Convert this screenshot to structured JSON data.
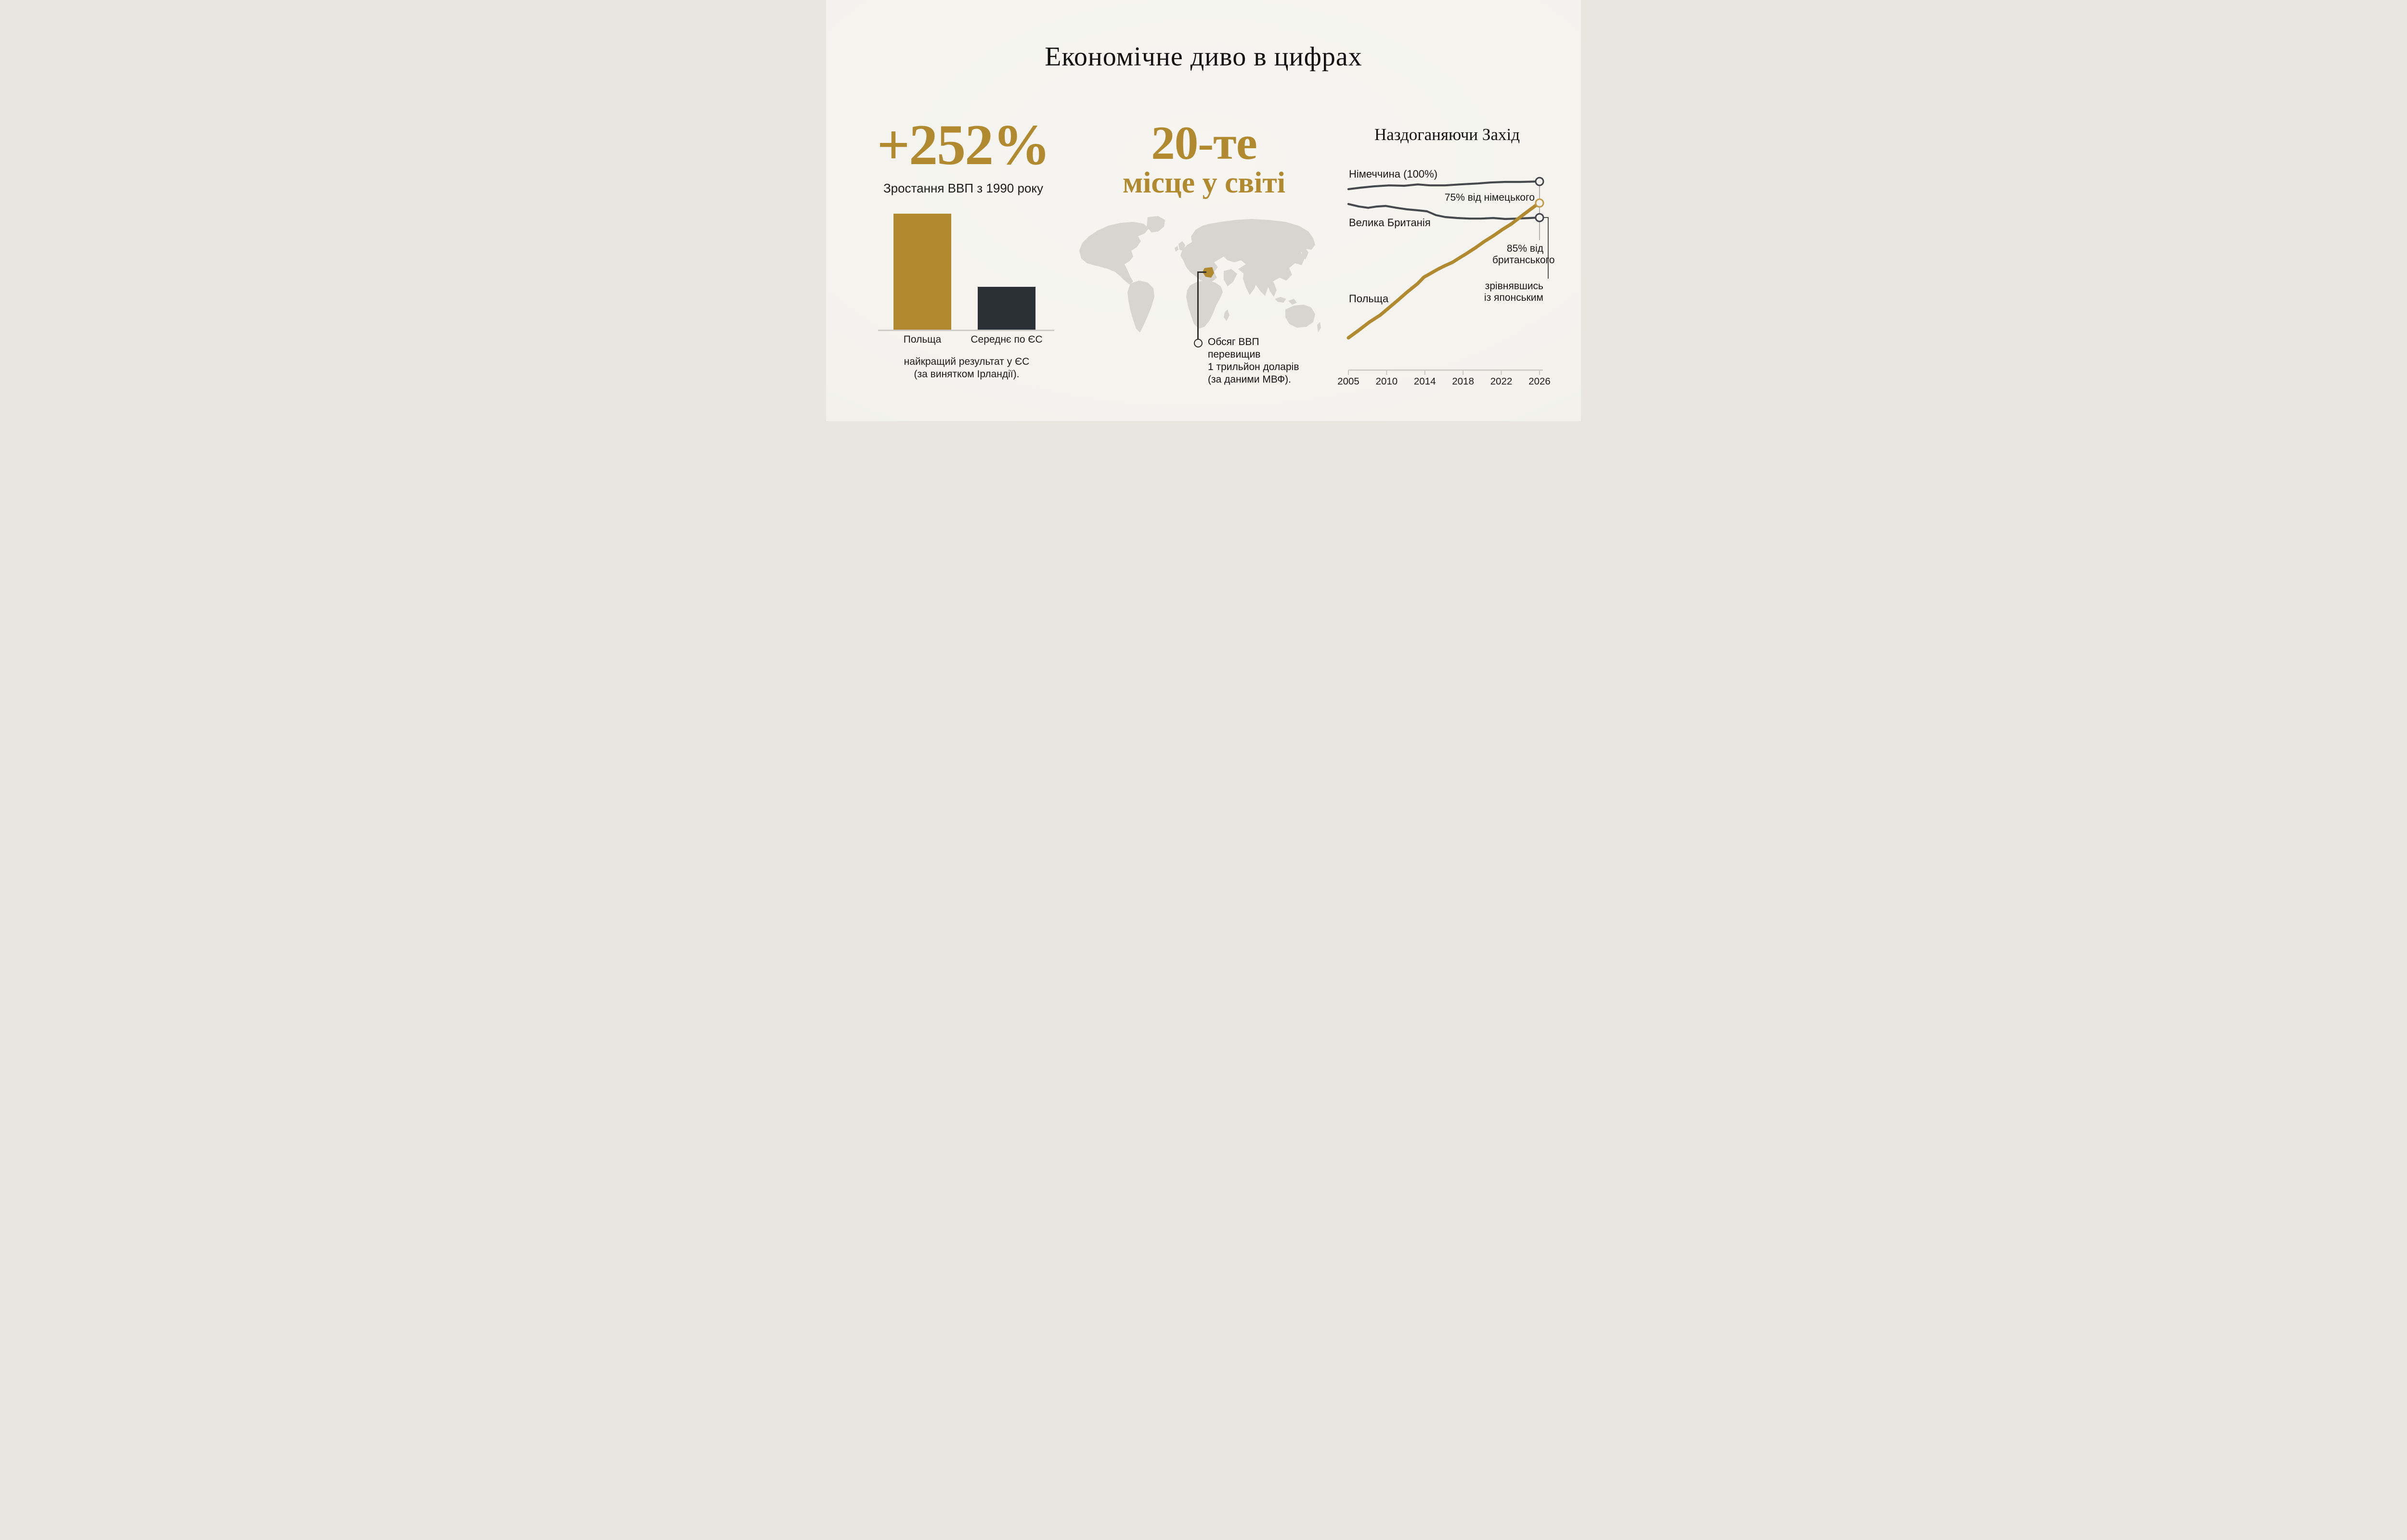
{
  "title": "Економічне диво в цифрах",
  "theme": {
    "background": "#f3f2ed",
    "accent_gold": "#b1892f",
    "gold_marker": "#c49a4a",
    "dark_bar": "#2b3036",
    "line_gray": "#45484c",
    "axis_gray": "#c9c8c2",
    "leader_dark": "#55544f",
    "connector_gray": "#9a9994",
    "map_land": "#d6d5d0",
    "text": "#161616"
  },
  "growth_panel": {
    "headline": "+252%",
    "subtitle": "Зростання ВВП з 1990 року",
    "footnote_line1": "найкращий результат у ЄС",
    "footnote_line2": "(за винятком Ірландії)."
  },
  "rank_panel": {
    "headline_line1": "20-те",
    "headline_line2": "місце у світі",
    "map_highlight": "Польща",
    "callout_lines": [
      "Обсяг ВВП",
      "перевищив",
      "1 трильйон доларів",
      "(за даними МВФ)."
    ]
  },
  "catchup_panel": {
    "heading": "Наздоганяючи Захід",
    "label_germany": "Німеччина (100%)",
    "label_uk": "Велика Британія",
    "label_poland": "Польща",
    "annotation_vs_germany": "75% від німецького",
    "annotation_vs_uk_line1": "85% від",
    "annotation_vs_uk_line2": "британського",
    "annotation_vs_japan_line1": "зрівнявшись",
    "annotation_vs_japan_line2": "із японським"
  },
  "chart_data": [
    {
      "type": "bar",
      "title": "Зростання ВВП з 1990 року",
      "categories": [
        "Польща",
        "Середнє по ЄС"
      ],
      "values": [
        252,
        93
      ],
      "unit": "%",
      "colors": [
        "#b1892f",
        "#2b3036"
      ],
      "annotation": "найкращий результат у ЄС (за винятком Ірландії)."
    },
    {
      "type": "map",
      "title": "20-те місце у світі",
      "highlight_country": "Польща",
      "annotation": "Обсяг ВВП перевищив 1 трильйон доларів (за даними МВФ)."
    },
    {
      "type": "line",
      "title": "Наздоганяючи Захід",
      "x_ticks": [
        "2005",
        "2010",
        "2014",
        "2018",
        "2022",
        "2026"
      ],
      "x_range": [
        2005,
        2026
      ],
      "grid": false,
      "legend": "inline-labels",
      "series": [
        {
          "name": "Німеччина (100%)",
          "color": "#45484c",
          "marker_color": "#3f4246",
          "approx_values_pct": [
            95.5,
            96.5,
            97,
            98,
            99,
            100
          ],
          "points_norm": [
            [
              0,
              0.058
            ],
            [
              0.063,
              0.05
            ],
            [
              0.134,
              0.043
            ],
            [
              0.214,
              0.038
            ],
            [
              0.292,
              0.04
            ],
            [
              0.363,
              0.033
            ],
            [
              0.426,
              0.038
            ],
            [
              0.506,
              0.038
            ],
            [
              0.584,
              0.033
            ],
            [
              0.678,
              0.028
            ],
            [
              0.743,
              0.023
            ],
            [
              0.821,
              0.02
            ],
            [
              0.902,
              0.02
            ],
            [
              0.98,
              0.018
            ],
            [
              0.987,
              0.018
            ]
          ],
          "end_dot_norm": [
            1.0,
            0.018
          ]
        },
        {
          "name": "Велика Британія",
          "color": "#45484c",
          "marker_color": "#3f4246",
          "approx_values_pct": [
            92.5,
            91,
            88.5,
            88,
            88,
            88
          ],
          "points_norm": [
            [
              0,
              0.135
            ],
            [
              0.055,
              0.148
            ],
            [
              0.103,
              0.155
            ],
            [
              0.149,
              0.148
            ],
            [
              0.196,
              0.145
            ],
            [
              0.252,
              0.155
            ],
            [
              0.307,
              0.163
            ],
            [
              0.363,
              0.168
            ],
            [
              0.411,
              0.173
            ],
            [
              0.458,
              0.193
            ],
            [
              0.506,
              0.203
            ],
            [
              0.569,
              0.208
            ],
            [
              0.632,
              0.211
            ],
            [
              0.695,
              0.211
            ],
            [
              0.758,
              0.208
            ],
            [
              0.821,
              0.213
            ],
            [
              0.884,
              0.211
            ],
            [
              0.95,
              0.208
            ],
            [
              0.987,
              0.206
            ]
          ],
          "end_dot_norm": [
            1.0,
            0.206
          ]
        },
        {
          "name": "Польща",
          "color": "#b1892f",
          "marker_color": "#c49a4a",
          "approx_values_pct": [
            22,
            34,
            46,
            56,
            65,
            75
          ],
          "points_norm": [
            [
              0,
              0.832
            ],
            [
              0.055,
              0.792
            ],
            [
              0.111,
              0.749
            ],
            [
              0.166,
              0.714
            ],
            [
              0.196,
              0.689
            ],
            [
              0.252,
              0.642
            ],
            [
              0.307,
              0.594
            ],
            [
              0.363,
              0.549
            ],
            [
              0.395,
              0.516
            ],
            [
              0.426,
              0.499
            ],
            [
              0.466,
              0.476
            ],
            [
              0.506,
              0.456
            ],
            [
              0.544,
              0.439
            ],
            [
              0.584,
              0.414
            ],
            [
              0.617,
              0.394
            ],
            [
              0.665,
              0.363
            ],
            [
              0.71,
              0.331
            ],
            [
              0.758,
              0.301
            ],
            [
              0.806,
              0.268
            ],
            [
              0.854,
              0.238
            ],
            [
              0.902,
              0.201
            ],
            [
              0.95,
              0.165
            ],
            [
              0.987,
              0.138
            ]
          ],
          "end_dot_norm": [
            1.0,
            0.13
          ]
        }
      ],
      "end_annotations": [
        "75% від німецького",
        "85% від британського",
        "зрівнявшись із японським"
      ]
    }
  ]
}
